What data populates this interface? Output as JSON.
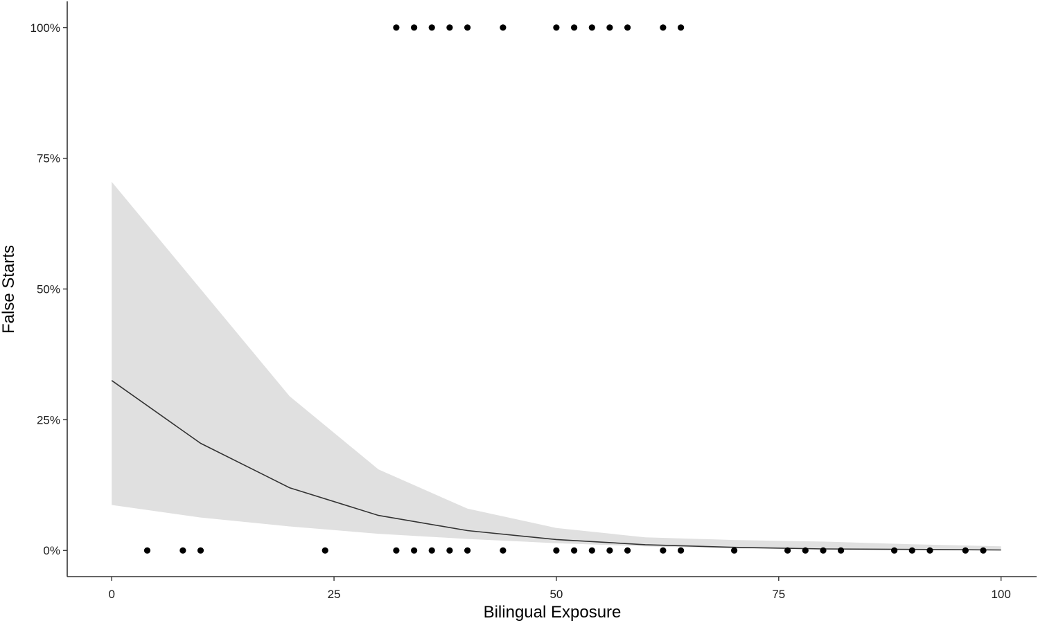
{
  "chart_data": {
    "type": "scatter",
    "title": "",
    "xlabel": "Bilingual Exposure",
    "ylabel": "False Starts",
    "xlim": [
      -5,
      104
    ],
    "ylim": [
      -0.05,
      1.05
    ],
    "x_ticks": [
      0,
      25,
      50,
      75,
      100
    ],
    "x_tick_labels": [
      "0",
      "25",
      "50",
      "75",
      "100"
    ],
    "y_ticks": [
      0,
      0.25,
      0.5,
      0.75,
      1.0
    ],
    "y_tick_labels": [
      "0%",
      "25%",
      "50%",
      "75%",
      "100%"
    ],
    "grid": false,
    "legend": "none",
    "colors": {
      "points": "#000000",
      "line": "#333333",
      "ribbon": "#e0e0e0",
      "axis": "#333333"
    },
    "points_at_1": [
      32,
      34,
      36,
      38,
      40,
      44,
      50,
      52,
      54,
      56,
      58,
      62,
      64
    ],
    "points_at_0": [
      4,
      8,
      10,
      24,
      32,
      34,
      36,
      38,
      40,
      44,
      50,
      52,
      54,
      56,
      58,
      62,
      64,
      70,
      76,
      78,
      80,
      82,
      88,
      90,
      92,
      96,
      98
    ],
    "fit_line": {
      "x": [
        0,
        10,
        20,
        30,
        40,
        50,
        60,
        70,
        80,
        90,
        100
      ],
      "y": [
        0.325,
        0.205,
        0.12,
        0.067,
        0.038,
        0.021,
        0.011,
        0.006,
        0.003,
        0.002,
        0.001
      ]
    },
    "ribbon": {
      "x": [
        0,
        10,
        20,
        30,
        40,
        50,
        60,
        70,
        80,
        90,
        100
      ],
      "upper": [
        0.705,
        0.5,
        0.295,
        0.155,
        0.08,
        0.043,
        0.025,
        0.02,
        0.017,
        0.012,
        0.008
      ],
      "lower": [
        0.087,
        0.063,
        0.046,
        0.032,
        0.022,
        0.014,
        0.008,
        0.004,
        0.002,
        0.001,
        0.0
      ]
    }
  }
}
